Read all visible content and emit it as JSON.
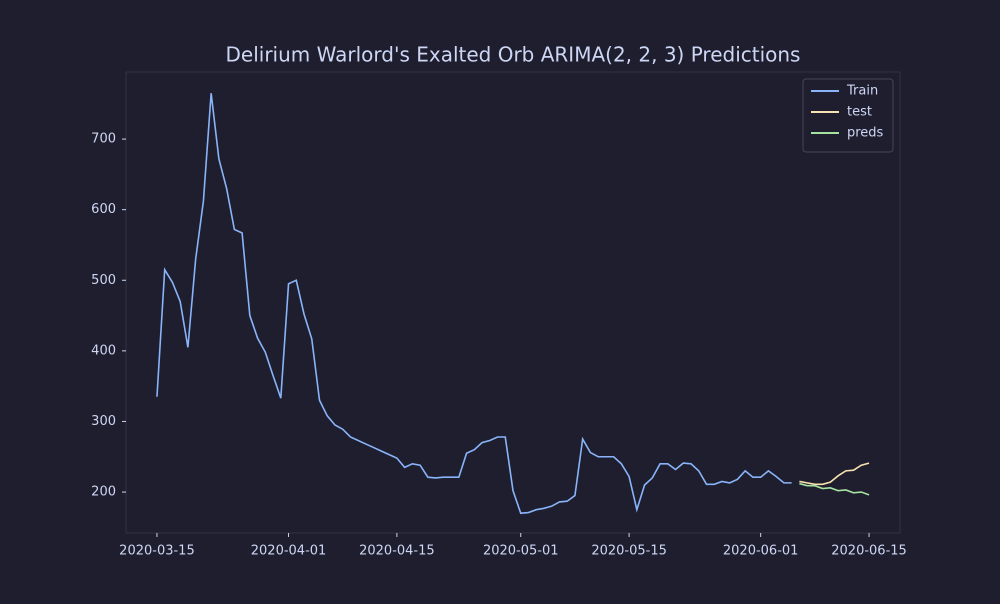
{
  "chart_data": {
    "type": "line",
    "title": "Delirium Warlord's Exalted Orb ARIMA(2, 2, 3) Predictions",
    "xlim": [
      "2020-03-11",
      "2020-06-19"
    ],
    "xticks": [
      "2020-03-15",
      "2020-04-01",
      "2020-04-15",
      "2020-05-01",
      "2020-05-15",
      "2020-06-01",
      "2020-06-15"
    ],
    "ylim": [
      142,
      795
    ],
    "yticks": [
      200,
      300,
      400,
      500,
      600,
      700
    ],
    "legend": "upper right",
    "grid": false,
    "series": [
      {
        "name": "Train",
        "color": "#89b4fa",
        "x": [
          "2020-03-15",
          "2020-03-16",
          "2020-03-17",
          "2020-03-18",
          "2020-03-19",
          "2020-03-20",
          "2020-03-21",
          "2020-03-22",
          "2020-03-23",
          "2020-03-24",
          "2020-03-25",
          "2020-03-26",
          "2020-03-27",
          "2020-03-28",
          "2020-03-29",
          "2020-03-30",
          "2020-03-31",
          "2020-04-01",
          "2020-04-02",
          "2020-04-03",
          "2020-04-04",
          "2020-04-05",
          "2020-04-06",
          "2020-04-07",
          "2020-04-08",
          "2020-04-09",
          "2020-04-10",
          "2020-04-11",
          "2020-04-12",
          "2020-04-13",
          "2020-04-14",
          "2020-04-15",
          "2020-04-16",
          "2020-04-17",
          "2020-04-18",
          "2020-04-19",
          "2020-04-20",
          "2020-04-21",
          "2020-04-22",
          "2020-04-23",
          "2020-04-24",
          "2020-04-25",
          "2020-04-26",
          "2020-04-27",
          "2020-04-28",
          "2020-04-29",
          "2020-04-30",
          "2020-05-01",
          "2020-05-02",
          "2020-05-03",
          "2020-05-04",
          "2020-05-05",
          "2020-05-06",
          "2020-05-07",
          "2020-05-08",
          "2020-05-09",
          "2020-05-10",
          "2020-05-11",
          "2020-05-12",
          "2020-05-13",
          "2020-05-14",
          "2020-05-15",
          "2020-05-16",
          "2020-05-17",
          "2020-05-18",
          "2020-05-19",
          "2020-05-20",
          "2020-05-21",
          "2020-05-22",
          "2020-05-23",
          "2020-05-24",
          "2020-05-25",
          "2020-05-26",
          "2020-05-27",
          "2020-05-28",
          "2020-05-29",
          "2020-05-30",
          "2020-05-31",
          "2020-06-01",
          "2020-06-02",
          "2020-06-03",
          "2020-06-04",
          "2020-06-05"
        ],
        "values": [
          335,
          515,
          497,
          470,
          405,
          530,
          612,
          765,
          672,
          630,
          572,
          567,
          450,
          418,
          398,
          365,
          333,
          495,
          500,
          452,
          417,
          330,
          308,
          295,
          289,
          278,
          273,
          268,
          263,
          258,
          253,
          248,
          235,
          240,
          238,
          221,
          220,
          221,
          221,
          221,
          255,
          260,
          270,
          273,
          278,
          278,
          202,
          170,
          171,
          175,
          177,
          180,
          186,
          187,
          195,
          275,
          256,
          250,
          250,
          250,
          240,
          222,
          175,
          210,
          220,
          240,
          240,
          232,
          241,
          240,
          230,
          211,
          211,
          215,
          213,
          218,
          230,
          221,
          221,
          230,
          222,
          213,
          213
        ]
      },
      {
        "name": "test",
        "color": "#f9e2af",
        "x": [
          "2020-06-06",
          "2020-06-07",
          "2020-06-08",
          "2020-06-09",
          "2020-06-10",
          "2020-06-11",
          "2020-06-12",
          "2020-06-13",
          "2020-06-14",
          "2020-06-15"
        ],
        "values": [
          215,
          213,
          211,
          211,
          214,
          223,
          230,
          231,
          238,
          241
        ]
      },
      {
        "name": "preds",
        "color": "#a6e3a1",
        "x": [
          "2020-06-06",
          "2020-06-07",
          "2020-06-08",
          "2020-06-09",
          "2020-06-10",
          "2020-06-11",
          "2020-06-12",
          "2020-06-13",
          "2020-06-14",
          "2020-06-15"
        ],
        "values": [
          212,
          209,
          209,
          205,
          206,
          202,
          203,
          199,
          200,
          196
        ]
      }
    ]
  }
}
